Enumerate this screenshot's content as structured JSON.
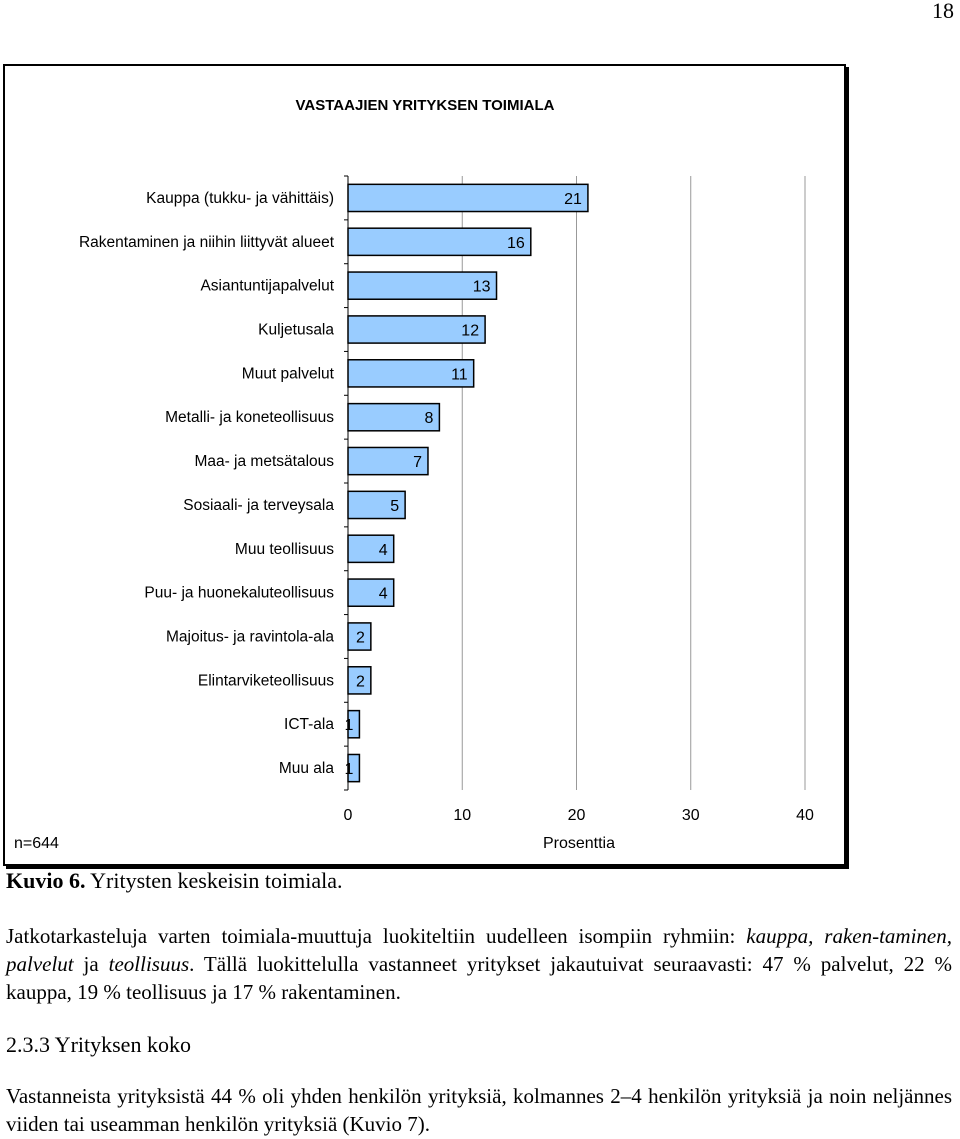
{
  "page_number": "18",
  "chart_data": {
    "type": "bar",
    "orientation": "horizontal",
    "title": "VASTAAJIEN YRITYKSEN TOIMIALA",
    "categories": [
      "Kauppa (tukku- ja vähittäis)",
      "Rakentaminen ja niihin liittyvät alueet",
      "Asiantuntijapalvelut",
      "Kuljetusala",
      "Muut palvelut",
      "Metalli- ja koneteollisuus",
      "Maa- ja metsätalous",
      "Sosiaali- ja terveysala",
      "Muu teollisuus",
      "Puu- ja huonekaluteollisuus",
      "Majoitus- ja ravintola-ala",
      "Elintarviketeollisuus",
      "ICT-ala",
      "Muu ala"
    ],
    "values": [
      21,
      16,
      13,
      12,
      11,
      8,
      7,
      5,
      4,
      4,
      2,
      2,
      1,
      1
    ],
    "xlabel": "Prosenttia",
    "xlim": [
      0,
      40
    ],
    "xticks": [
      0,
      10,
      20,
      30,
      40
    ],
    "note": "n=644",
    "bar_color": "#99ccff",
    "bar_edge_color": "#000000",
    "grid": true
  },
  "caption": {
    "label": "Kuvio 6.",
    "text": " Yritysten keskeisin toimiala."
  },
  "paragraph1": {
    "p1": "Jatkotarkasteluja varten toimiala-muuttuja luokiteltiin uudelleen isompiin ryhmiin: ",
    "i1": "kauppa, raken-taminen, palvelut",
    "p2": " ja ",
    "i2": "teollisuus",
    "p3": ". Tällä luokittelulla vastanneet yritykset jakautuivat seuraavasti: 47 % palvelut, 22 % kauppa, 19 % teollisuus ja 17 % rakentaminen."
  },
  "section_heading": "2.3.3 Yrityksen koko",
  "paragraph2": "Vastanneista yrityksistä 44 % oli yhden henkilön yrityksiä, kolmannes 2–4 henkilön yrityksiä ja noin neljännes viiden tai useamman henkilön yrityksiä (Kuvio 7)."
}
